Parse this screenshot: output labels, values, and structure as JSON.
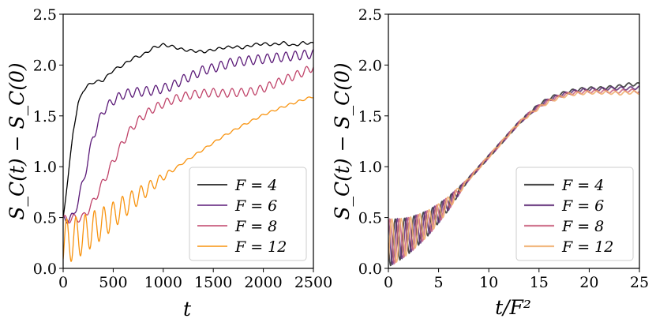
{
  "chart_data": [
    {
      "type": "line",
      "xlabel": "t",
      "ylabel": "S_C(t) − S_C(0)",
      "xlim": [
        0,
        2500
      ],
      "ylim": [
        0,
        2.5
      ],
      "xticks": [
        0,
        500,
        1000,
        1500,
        2000,
        2500
      ],
      "yticks": [
        0.0,
        0.5,
        1.0,
        1.5,
        2.0,
        2.5
      ],
      "xtick_labels": [
        "0",
        "500",
        "1000",
        "1500",
        "2000",
        "2500"
      ],
      "ytick_labels": [
        "0.0",
        "0.5",
        "1.0",
        "1.5",
        "2.0",
        "2.5"
      ],
      "grid": false,
      "legend_position": "lower-right",
      "series": [
        {
          "name": "F = 4",
          "color": "#000000",
          "x": [
            0,
            50,
            100,
            150,
            200,
            250,
            300,
            400,
            500,
            600,
            700,
            800,
            900,
            1000,
            1100,
            1200,
            1300,
            1400,
            1500,
            1600,
            1700,
            1800,
            1900,
            2000,
            2100,
            2200,
            2300,
            2400,
            2500
          ],
          "y": [
            0.5,
            0.9,
            1.35,
            1.62,
            1.75,
            1.8,
            1.83,
            1.85,
            1.95,
            2.0,
            2.07,
            2.1,
            2.17,
            2.2,
            2.18,
            2.15,
            2.14,
            2.13,
            2.15,
            2.17,
            2.18,
            2.17,
            2.2,
            2.21,
            2.2,
            2.22,
            2.19,
            2.22,
            2.21
          ]
        },
        {
          "name": "F = 6",
          "color": "#5b1a78",
          "x": [
            0,
            100,
            200,
            300,
            400,
            500,
            600,
            700,
            800,
            900,
            1000,
            1100,
            1200,
            1300,
            1400,
            1500,
            1600,
            1700,
            1800,
            1900,
            2000,
            2100,
            2200,
            2300,
            2400,
            2500
          ],
          "y": [
            0.48,
            0.5,
            0.85,
            1.3,
            1.55,
            1.65,
            1.71,
            1.73,
            1.74,
            1.75,
            1.77,
            1.8,
            1.86,
            1.9,
            1.95,
            1.97,
            2.0,
            2.03,
            2.04,
            2.05,
            2.06,
            2.07,
            2.08,
            2.09,
            2.1,
            2.11
          ]
        },
        {
          "name": "F = 8",
          "color": "#c0446a",
          "x": [
            0,
            200,
            300,
            400,
            500,
            600,
            700,
            800,
            900,
            1000,
            1100,
            1200,
            1300,
            1400,
            1500,
            1600,
            1700,
            1800,
            1900,
            2000,
            2100,
            2200,
            2300,
            2400,
            2500
          ],
          "y": [
            0.48,
            0.5,
            0.65,
            0.85,
            1.05,
            1.25,
            1.4,
            1.5,
            1.57,
            1.62,
            1.66,
            1.69,
            1.71,
            1.72,
            1.73,
            1.72,
            1.73,
            1.73,
            1.74,
            1.77,
            1.81,
            1.85,
            1.89,
            1.93,
            1.98
          ]
        },
        {
          "name": "F = 12",
          "color": "#f8930f",
          "x": [
            0,
            200,
            400,
            500,
            600,
            800,
            1000,
            1200,
            1400,
            1600,
            1800,
            2000,
            2200,
            2400,
            2500
          ],
          "y": [
            0.25,
            0.33,
            0.45,
            0.52,
            0.6,
            0.75,
            0.9,
            1.04,
            1.17,
            1.3,
            1.41,
            1.51,
            1.59,
            1.66,
            1.69
          ]
        }
      ]
    },
    {
      "type": "line",
      "xlabel": "t/F²",
      "ylabel": "S_C(t) − S_C(0)",
      "xlim": [
        0,
        25
      ],
      "ylim": [
        0,
        2.5
      ],
      "xticks": [
        0,
        5,
        10,
        15,
        20,
        25
      ],
      "yticks": [
        0.0,
        0.5,
        1.0,
        1.5,
        2.0,
        2.5
      ],
      "xtick_labels": [
        "0",
        "5",
        "10",
        "15",
        "20",
        "25"
      ],
      "ytick_labels": [
        "0.0",
        "0.5",
        "1.0",
        "1.5",
        "2.0",
        "2.5"
      ],
      "grid": false,
      "legend_position": "lower-right",
      "series": [
        {
          "name": "F = 4",
          "color": "#2b2b2b",
          "x": [
            0,
            1,
            2,
            3,
            4,
            5,
            6,
            7,
            8,
            9,
            10,
            11,
            12,
            13,
            14,
            15,
            16,
            17,
            18,
            19,
            20,
            21,
            22,
            23,
            24,
            25
          ],
          "y": [
            0.25,
            0.28,
            0.32,
            0.38,
            0.45,
            0.54,
            0.64,
            0.76,
            0.88,
            0.99,
            1.1,
            1.21,
            1.32,
            1.43,
            1.52,
            1.61,
            1.67,
            1.71,
            1.74,
            1.76,
            1.77,
            1.77,
            1.78,
            1.79,
            1.81,
            1.81
          ]
        },
        {
          "name": "F = 6",
          "color": "#5e2c77",
          "x": [
            0,
            1,
            2,
            3,
            4,
            5,
            6,
            7,
            8,
            9,
            10,
            11,
            12,
            13,
            14,
            15,
            16,
            17,
            18,
            19,
            20,
            21,
            22,
            23,
            24,
            25
          ],
          "y": [
            0.25,
            0.28,
            0.32,
            0.38,
            0.45,
            0.54,
            0.64,
            0.76,
            0.88,
            0.99,
            1.1,
            1.21,
            1.32,
            1.43,
            1.52,
            1.6,
            1.66,
            1.7,
            1.73,
            1.75,
            1.76,
            1.76,
            1.77,
            1.77,
            1.77,
            1.78
          ]
        },
        {
          "name": "F = 8",
          "color": "#c9607e",
          "x": [
            0,
            1,
            2,
            3,
            4,
            5,
            6,
            7,
            8,
            9,
            10,
            11,
            12,
            13,
            14,
            15,
            16,
            17,
            18,
            19,
            20,
            21,
            22,
            23,
            24,
            25
          ],
          "y": [
            0.25,
            0.28,
            0.32,
            0.38,
            0.45,
            0.54,
            0.64,
            0.76,
            0.88,
            0.99,
            1.1,
            1.21,
            1.32,
            1.43,
            1.52,
            1.59,
            1.65,
            1.69,
            1.72,
            1.73,
            1.74,
            1.74,
            1.74,
            1.74,
            1.75,
            1.74
          ]
        },
        {
          "name": "F = 12",
          "color": "#f0ac6a",
          "x": [
            0,
            1,
            2,
            3,
            4,
            5,
            6,
            7,
            8,
            9,
            10,
            11,
            12,
            13,
            14,
            15,
            16,
            17,
            18,
            19,
            20,
            21,
            22,
            23,
            24,
            25
          ],
          "y": [
            0.25,
            0.28,
            0.32,
            0.38,
            0.45,
            0.54,
            0.64,
            0.76,
            0.88,
            0.99,
            1.1,
            1.21,
            1.32,
            1.43,
            1.51,
            1.58,
            1.64,
            1.68,
            1.71,
            1.72,
            1.73,
            1.73,
            1.73,
            1.72,
            1.73,
            1.73
          ]
        }
      ]
    }
  ]
}
